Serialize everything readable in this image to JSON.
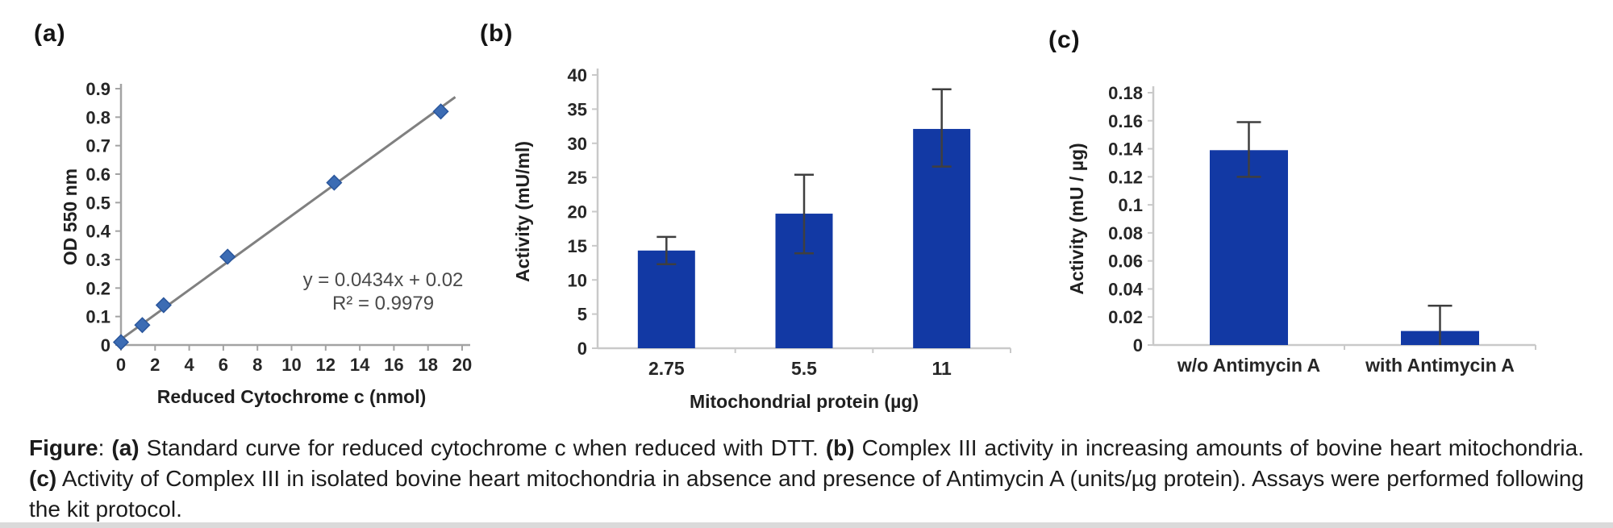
{
  "figure": {
    "background": "#ffffff",
    "text_color": "#1c1c1c",
    "tick_text_color": "#262626"
  },
  "caption": {
    "segments": [
      {
        "bold": true,
        "text": "Figure"
      },
      {
        "bold": false,
        "text": ": "
      },
      {
        "bold": true,
        "text": "(a)"
      },
      {
        "bold": false,
        "text": " Standard curve for reduced cytochrome c when reduced with DTT. "
      },
      {
        "bold": true,
        "text": "(b)"
      },
      {
        "bold": false,
        "text": " Complex III activity in increasing amounts of bovine heart mitochondria. "
      },
      {
        "bold": true,
        "text": "(c)"
      },
      {
        "bold": false,
        "text": " Activity of Complex III in isolated bovine heart mitochondria in absence and presence of Antimycin A (units/µg protein). Assays were performed following the kit protocol."
      }
    ]
  },
  "chart_data": [
    {
      "id": "standard-curve",
      "panel_label": "(a)",
      "type": "scatter",
      "title": "",
      "xlabel": "Reduced Cytochrome c (nmol)",
      "ylabel": "OD 550 nm",
      "x": [
        0,
        1.25,
        2.5,
        6.25,
        12.5,
        18.75
      ],
      "y": [
        0.01,
        0.07,
        0.14,
        0.31,
        0.57,
        0.82
      ],
      "xlim": [
        0,
        20
      ],
      "ylim": [
        0,
        0.9
      ],
      "xtick_step": 2,
      "ytick_step": 0.1,
      "grid": false,
      "trendline": {
        "slope": 0.0434,
        "intercept": 0.02
      },
      "annotation": [
        "y = 0.0434x + 0.02",
        "R² = 0.9979"
      ],
      "marker_shape": "diamond",
      "marker_color": "#3c6cb4",
      "marker_edge": "#2a569c",
      "line_color": "#808080",
      "axis_color": "#a3a3a3"
    },
    {
      "id": "protein-titration",
      "panel_label": "(b)",
      "type": "bar",
      "title": "",
      "xlabel": "Mitochondrial protein  (µg)",
      "ylabel": "Activity (mU/ml)",
      "categories": [
        "2.75",
        "5.5",
        "11"
      ],
      "values": [
        14.3,
        19.7,
        32.1
      ],
      "error_plus": [
        2.0,
        5.7,
        5.8
      ],
      "error_minus": [
        2.0,
        5.8,
        5.5
      ],
      "ylim": [
        0,
        40
      ],
      "ytick_step": 5,
      "grid": false,
      "bar_color": "#1239a4",
      "error_color": "#3f3f3f",
      "axis_color": "#c9c9c9"
    },
    {
      "id": "antimycin-inhibition",
      "panel_label": "(c)",
      "type": "bar",
      "title": "",
      "xlabel": "",
      "ylabel": "Activity (mU / µg)",
      "categories": [
        "w/o Antimycin A",
        "with Antimycin A"
      ],
      "values": [
        0.139,
        0.01
      ],
      "error_plus": [
        0.02,
        0.018
      ],
      "error_minus": [
        0.019,
        0.01
      ],
      "ylim": [
        0,
        0.18
      ],
      "ytick_step": 0.02,
      "grid": false,
      "bar_color": "#1239a4",
      "error_color": "#3f3f3f",
      "axis_color": "#c9c9c9"
    }
  ]
}
